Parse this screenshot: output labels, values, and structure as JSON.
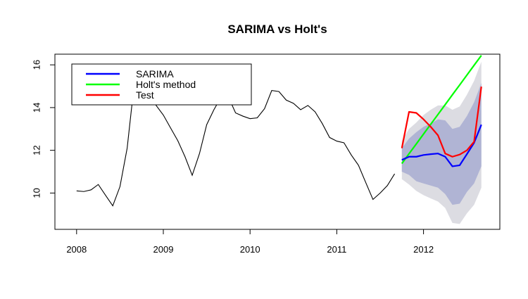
{
  "chart_data": {
    "type": "line",
    "title": "SARIMA vs Holt's",
    "xlabel": "",
    "ylabel": "",
    "xlim": [
      2007.75,
      2012.88
    ],
    "ylim": [
      8.3,
      16.5
    ],
    "x_ticks": [
      2008,
      2009,
      2010,
      2011,
      2012
    ],
    "x_tick_labels": [
      "2008",
      "2009",
      "2010",
      "2011",
      "2012"
    ],
    "y_ticks": [
      10,
      12,
      14,
      16
    ],
    "y_tick_labels": [
      "10",
      "12",
      "14",
      "16"
    ],
    "grid": false,
    "legend_position": "top-left",
    "legend": [
      {
        "name": "SARIMA",
        "color": "#0000ff"
      },
      {
        "name": "Holt's method",
        "color": "#00ff00"
      },
      {
        "name": "Test",
        "color": "#ff0000"
      }
    ],
    "history": {
      "color": "#000000",
      "x": [
        2008.0,
        2008.083,
        2008.167,
        2008.25,
        2008.333,
        2008.417,
        2008.5,
        2008.583,
        2008.667,
        2008.75,
        2008.833,
        2008.917,
        2009.0,
        2009.083,
        2009.167,
        2009.25,
        2009.333,
        2009.417,
        2009.5,
        2009.583,
        2009.667,
        2009.75,
        2009.833,
        2009.917,
        2010.0,
        2010.083,
        2010.167,
        2010.25,
        2010.333,
        2010.417,
        2010.5,
        2010.583,
        2010.667,
        2010.75,
        2010.833,
        2010.917,
        2011.0,
        2011.083,
        2011.167,
        2011.25,
        2011.333,
        2011.417,
        2011.5,
        2011.583,
        2011.667
      ],
      "y": [
        10.1,
        10.07,
        10.15,
        10.4,
        9.9,
        9.4,
        10.3,
        12.1,
        15.2,
        15.6,
        14.8,
        14.1,
        13.65,
        13.05,
        12.45,
        11.7,
        10.83,
        11.85,
        13.2,
        13.9,
        14.5,
        14.5,
        13.75,
        13.6,
        13.48,
        13.52,
        13.95,
        14.8,
        14.75,
        14.35,
        14.2,
        13.9,
        14.1,
        13.8,
        13.25,
        12.6,
        12.43,
        12.35,
        11.78,
        11.3,
        10.5,
        9.7,
        10.0,
        10.35,
        10.9
      ]
    },
    "forecast_x": [
      2011.75,
      2011.833,
      2011.917,
      2012.0,
      2012.083,
      2012.167,
      2012.25,
      2012.333,
      2012.417,
      2012.5,
      2012.583,
      2012.667
    ],
    "series": [
      {
        "name": "SARIMA",
        "color": "#0000ff",
        "values": [
          11.55,
          11.7,
          11.7,
          11.78,
          11.82,
          11.85,
          11.7,
          11.25,
          11.3,
          11.82,
          12.35,
          13.2
        ]
      },
      {
        "name": "Holt's method",
        "color": "#00ff00",
        "values": [
          11.38,
          11.84,
          12.3,
          12.76,
          13.22,
          13.68,
          14.14,
          14.6,
          15.06,
          15.52,
          15.98,
          16.44
        ]
      },
      {
        "name": "Test",
        "color": "#ff0000",
        "values": [
          12.1,
          13.8,
          13.75,
          13.45,
          13.1,
          12.7,
          11.85,
          11.7,
          11.8,
          12.0,
          12.4,
          14.98
        ]
      }
    ],
    "intervals": {
      "outer_color": "#dcdce2",
      "inner_color": "#b0b4d4",
      "lower95": [
        10.65,
        10.4,
        10.1,
        9.9,
        9.75,
        9.6,
        9.3,
        8.6,
        8.55,
        9.05,
        9.45,
        10.25
      ],
      "upper95": [
        12.45,
        13.0,
        13.3,
        13.65,
        13.9,
        14.1,
        14.1,
        13.9,
        14.05,
        14.6,
        15.25,
        16.15
      ],
      "lower80": [
        11.0,
        10.85,
        10.55,
        10.45,
        10.35,
        10.25,
        9.95,
        9.45,
        9.5,
        10.05,
        10.45,
        11.25
      ],
      "upper80": [
        12.1,
        12.55,
        12.85,
        13.1,
        13.25,
        13.45,
        13.4,
        13.0,
        13.1,
        13.6,
        14.25,
        15.15
      ]
    }
  }
}
